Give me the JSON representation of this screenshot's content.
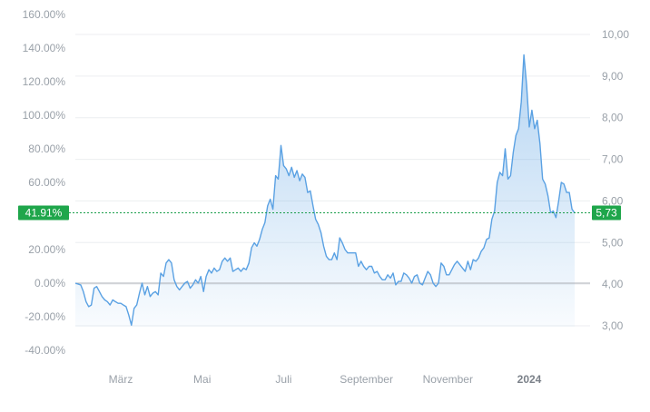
{
  "chart_data": {
    "type": "area",
    "title": "",
    "xlabel": "",
    "ylabel": "",
    "grid": true,
    "legend": "none",
    "x_tick_labels": [
      {
        "label": "März",
        "date": "2023-03-01",
        "bold": false
      },
      {
        "label": "Mai",
        "date": "2023-05-01",
        "bold": false
      },
      {
        "label": "Juli",
        "date": "2023-07-01",
        "bold": false
      },
      {
        "label": "September",
        "date": "2023-09-01",
        "bold": false
      },
      {
        "label": "November",
        "date": "2023-11-01",
        "bold": false
      },
      {
        "label": "2024",
        "date": "2024-01-01",
        "bold": true
      }
    ],
    "y_left": {
      "unit": "percent change",
      "ylim": [
        -40,
        160
      ],
      "tick_labels": [
        "160.00%",
        "140.00%",
        "120.00%",
        "100.00%",
        "80.00%",
        "60.00%",
        "40.00%",
        "20.00%",
        "0.00%",
        "-20.00%",
        "-40.00%"
      ],
      "tick_values": [
        160,
        140,
        120,
        100,
        80,
        60,
        40,
        20,
        0,
        -20,
        -40
      ]
    },
    "y_right": {
      "unit": "price",
      "ylim": [
        3.0,
        10.0
      ],
      "tick_labels": [
        "10,00",
        "9,00",
        "8,00",
        "7,00",
        "6,00",
        "5,00",
        "4,00",
        "3,00"
      ],
      "tick_values": [
        10,
        9,
        8,
        7,
        6,
        5,
        4,
        3
      ]
    },
    "baseline_value": 0,
    "current": {
      "percent_label": "41.91%",
      "price_label": "5,73",
      "percent_value": 41.91
    },
    "series": [
      {
        "color": "#5aa1e3",
        "points": [
          [
            "2023-01-26",
            0.0
          ],
          [
            "2023-01-30",
            -1.0
          ],
          [
            "2023-02-01",
            -5.0
          ],
          [
            "2023-02-03",
            -11.0
          ],
          [
            "2023-02-05",
            -14.0
          ],
          [
            "2023-02-07",
            -13.0
          ],
          [
            "2023-02-09",
            -3.0
          ],
          [
            "2023-02-11",
            -2.0
          ],
          [
            "2023-02-13",
            -5.0
          ],
          [
            "2023-02-15",
            -8.0
          ],
          [
            "2023-02-17",
            -10.0
          ],
          [
            "2023-02-19",
            -11.0
          ],
          [
            "2023-02-21",
            -13.0
          ],
          [
            "2023-02-23",
            -10.0
          ],
          [
            "2023-02-25",
            -11.0
          ],
          [
            "2023-02-27",
            -12.0
          ],
          [
            "2023-03-01",
            -12.0
          ],
          [
            "2023-03-03",
            -13.0
          ],
          [
            "2023-03-05",
            -14.0
          ],
          [
            "2023-03-07",
            -19.0
          ],
          [
            "2023-03-09",
            -25.0
          ],
          [
            "2023-03-11",
            -15.0
          ],
          [
            "2023-03-13",
            -13.0
          ],
          [
            "2023-03-15",
            -6.0
          ],
          [
            "2023-03-17",
            0.0
          ],
          [
            "2023-03-19",
            -7.0
          ],
          [
            "2023-03-21",
            -2.0
          ],
          [
            "2023-03-23",
            -8.0
          ],
          [
            "2023-03-25",
            -6.0
          ],
          [
            "2023-03-27",
            -5.0
          ],
          [
            "2023-03-29",
            -7.0
          ],
          [
            "2023-03-31",
            6.0
          ],
          [
            "2023-04-02",
            4.0
          ],
          [
            "2023-04-04",
            12.0
          ],
          [
            "2023-04-06",
            14.0
          ],
          [
            "2023-04-08",
            12.0
          ],
          [
            "2023-04-10",
            2.0
          ],
          [
            "2023-04-12",
            -2.0
          ],
          [
            "2023-04-14",
            -4.0
          ],
          [
            "2023-04-16",
            -2.0
          ],
          [
            "2023-04-18",
            0.0
          ],
          [
            "2023-04-20",
            1.0
          ],
          [
            "2023-04-22",
            -3.0
          ],
          [
            "2023-04-24",
            -1.0
          ],
          [
            "2023-04-26",
            2.0
          ],
          [
            "2023-04-28",
            0.0
          ],
          [
            "2023-04-30",
            4.0
          ],
          [
            "2023-05-02",
            -5.0
          ],
          [
            "2023-05-04",
            4.0
          ],
          [
            "2023-05-06",
            8.0
          ],
          [
            "2023-05-08",
            6.0
          ],
          [
            "2023-05-10",
            9.0
          ],
          [
            "2023-05-12",
            7.0
          ],
          [
            "2023-05-14",
            8.0
          ],
          [
            "2023-05-16",
            13.0
          ],
          [
            "2023-05-18",
            15.0
          ],
          [
            "2023-05-20",
            13.0
          ],
          [
            "2023-05-22",
            15.0
          ],
          [
            "2023-05-24",
            7.0
          ],
          [
            "2023-05-26",
            8.0
          ],
          [
            "2023-05-28",
            9.0
          ],
          [
            "2023-05-30",
            7.0
          ],
          [
            "2023-06-01",
            9.0
          ],
          [
            "2023-06-03",
            8.0
          ],
          [
            "2023-06-05",
            12.0
          ],
          [
            "2023-06-07",
            21.0
          ],
          [
            "2023-06-09",
            24.0
          ],
          [
            "2023-06-11",
            22.0
          ],
          [
            "2023-06-13",
            26.0
          ],
          [
            "2023-06-15",
            32.0
          ],
          [
            "2023-06-17",
            36.0
          ],
          [
            "2023-06-19",
            46.0
          ],
          [
            "2023-06-21",
            50.0
          ],
          [
            "2023-06-23",
            44.0
          ],
          [
            "2023-06-25",
            64.0
          ],
          [
            "2023-06-27",
            62.0
          ],
          [
            "2023-06-29",
            82.0
          ],
          [
            "2023-07-01",
            70.0
          ],
          [
            "2023-07-03",
            68.0
          ],
          [
            "2023-07-05",
            64.0
          ],
          [
            "2023-07-07",
            69.0
          ],
          [
            "2023-07-09",
            63.0
          ],
          [
            "2023-07-11",
            67.0
          ],
          [
            "2023-07-13",
            61.0
          ],
          [
            "2023-07-15",
            65.0
          ],
          [
            "2023-07-17",
            63.0
          ],
          [
            "2023-07-19",
            54.0
          ],
          [
            "2023-07-21",
            55.0
          ],
          [
            "2023-07-23",
            46.0
          ],
          [
            "2023-07-25",
            38.0
          ],
          [
            "2023-07-27",
            35.0
          ],
          [
            "2023-07-29",
            30.0
          ],
          [
            "2023-07-31",
            22.0
          ],
          [
            "2023-08-02",
            16.0
          ],
          [
            "2023-08-04",
            14.0
          ],
          [
            "2023-08-06",
            14.0
          ],
          [
            "2023-08-08",
            18.0
          ],
          [
            "2023-08-10",
            14.0
          ],
          [
            "2023-08-12",
            27.0
          ],
          [
            "2023-08-14",
            24.0
          ],
          [
            "2023-08-16",
            20.0
          ],
          [
            "2023-08-18",
            18.0
          ],
          [
            "2023-08-20",
            18.0
          ],
          [
            "2023-08-22",
            18.0
          ],
          [
            "2023-08-24",
            18.0
          ],
          [
            "2023-08-26",
            10.0
          ],
          [
            "2023-08-28",
            13.0
          ],
          [
            "2023-08-30",
            10.0
          ],
          [
            "2023-09-01",
            8.0
          ],
          [
            "2023-09-03",
            10.0
          ],
          [
            "2023-09-05",
            10.0
          ],
          [
            "2023-09-07",
            6.0
          ],
          [
            "2023-09-09",
            7.0
          ],
          [
            "2023-09-11",
            4.0
          ],
          [
            "2023-09-13",
            2.0
          ],
          [
            "2023-09-15",
            2.0
          ],
          [
            "2023-09-17",
            5.0
          ],
          [
            "2023-09-19",
            3.0
          ],
          [
            "2023-09-21",
            6.0
          ],
          [
            "2023-09-23",
            -1.0
          ],
          [
            "2023-09-25",
            1.0
          ],
          [
            "2023-09-27",
            1.0
          ],
          [
            "2023-09-29",
            6.0
          ],
          [
            "2023-10-01",
            5.0
          ],
          [
            "2023-10-03",
            3.0
          ],
          [
            "2023-10-05",
            0.0
          ],
          [
            "2023-10-07",
            4.0
          ],
          [
            "2023-10-09",
            5.0
          ],
          [
            "2023-10-11",
            0.0
          ],
          [
            "2023-10-13",
            -1.0
          ],
          [
            "2023-10-15",
            3.0
          ],
          [
            "2023-10-17",
            7.0
          ],
          [
            "2023-10-19",
            5.0
          ],
          [
            "2023-10-21",
            0.0
          ],
          [
            "2023-10-23",
            -2.0
          ],
          [
            "2023-10-25",
            0.0
          ],
          [
            "2023-10-27",
            12.0
          ],
          [
            "2023-10-29",
            10.0
          ],
          [
            "2023-10-31",
            5.0
          ],
          [
            "2023-11-02",
            5.0
          ],
          [
            "2023-11-04",
            8.0
          ],
          [
            "2023-11-06",
            11.0
          ],
          [
            "2023-11-08",
            13.0
          ],
          [
            "2023-11-10",
            11.0
          ],
          [
            "2023-11-12",
            9.0
          ],
          [
            "2023-11-14",
            7.0
          ],
          [
            "2023-11-16",
            13.0
          ],
          [
            "2023-11-18",
            8.0
          ],
          [
            "2023-11-20",
            14.0
          ],
          [
            "2023-11-22",
            13.0
          ],
          [
            "2023-11-24",
            15.0
          ],
          [
            "2023-11-26",
            19.0
          ],
          [
            "2023-11-28",
            21.0
          ],
          [
            "2023-11-30",
            26.0
          ],
          [
            "2023-12-02",
            27.0
          ],
          [
            "2023-12-04",
            38.0
          ],
          [
            "2023-12-06",
            43.0
          ],
          [
            "2023-12-08",
            60.0
          ],
          [
            "2023-12-10",
            66.0
          ],
          [
            "2023-12-12",
            64.0
          ],
          [
            "2023-12-14",
            80.0
          ],
          [
            "2023-12-16",
            62.0
          ],
          [
            "2023-12-18",
            64.0
          ],
          [
            "2023-12-20",
            78.0
          ],
          [
            "2023-12-22",
            88.0
          ],
          [
            "2023-12-24",
            92.0
          ],
          [
            "2023-12-26",
            108.0
          ],
          [
            "2023-12-28",
            136.0
          ],
          [
            "2023-12-30",
            118.0
          ],
          [
            "2024-01-01",
            93.0
          ],
          [
            "2024-01-03",
            103.0
          ],
          [
            "2024-01-05",
            92.0
          ],
          [
            "2024-01-07",
            97.0
          ],
          [
            "2024-01-09",
            83.0
          ],
          [
            "2024-01-11",
            62.0
          ],
          [
            "2024-01-13",
            59.0
          ],
          [
            "2024-01-15",
            52.0
          ],
          [
            "2024-01-17",
            42.0
          ],
          [
            "2024-01-19",
            43.0
          ],
          [
            "2024-01-21",
            39.0
          ],
          [
            "2024-01-23",
            49.0
          ],
          [
            "2024-01-25",
            60.0
          ],
          [
            "2024-01-27",
            59.0
          ],
          [
            "2024-01-29",
            54.0
          ],
          [
            "2024-01-31",
            54.0
          ],
          [
            "2024-02-02",
            44.0
          ],
          [
            "2024-02-04",
            41.91
          ]
        ]
      }
    ]
  }
}
